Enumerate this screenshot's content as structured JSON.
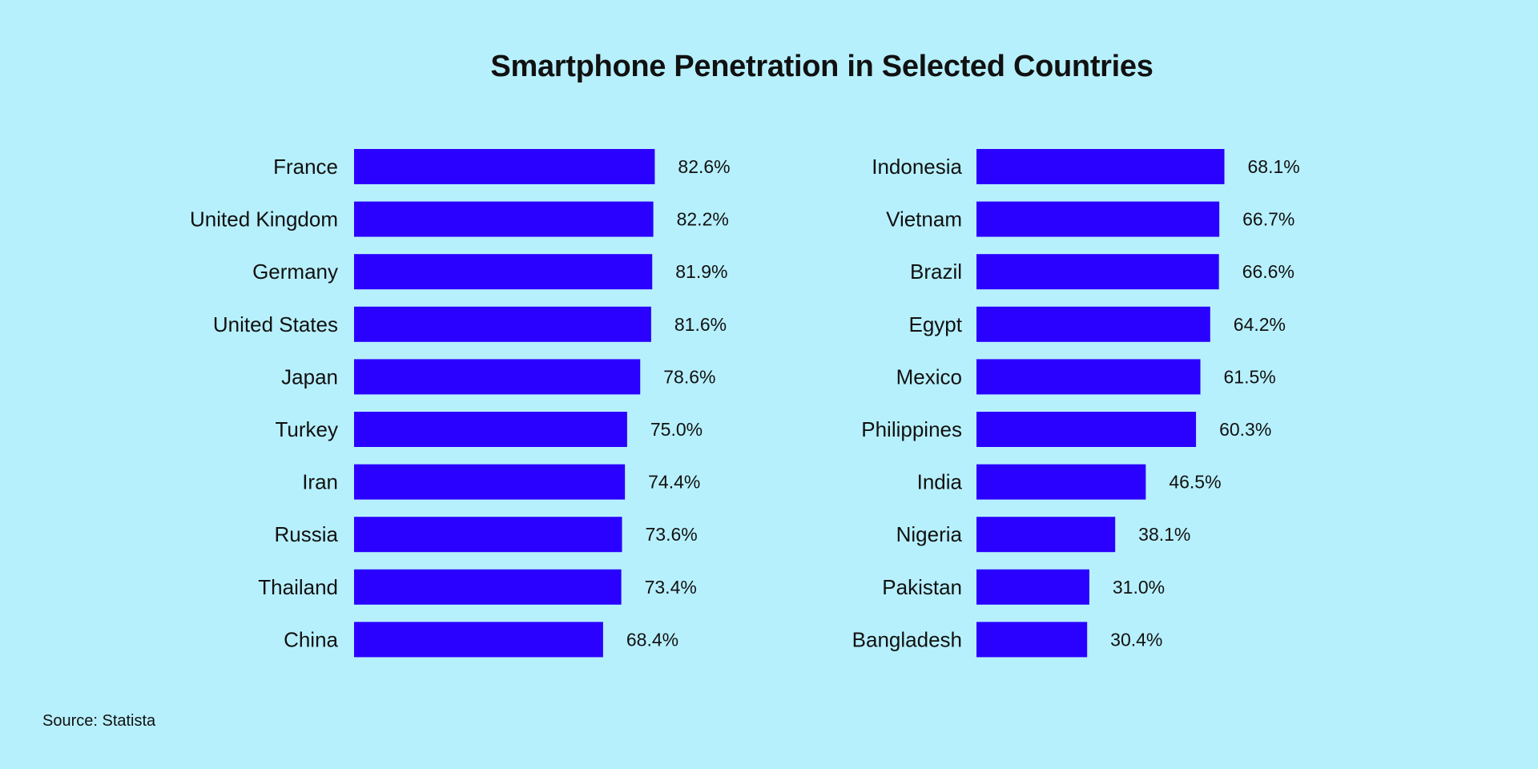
{
  "title": "Smartphone Penetration in Selected Countries",
  "source": "Source: Statista",
  "colors": {
    "background": "#b7f0fd",
    "bar": "#2a00ff",
    "text": "#111111"
  },
  "chart_data": [
    {
      "type": "bar",
      "orientation": "horizontal",
      "title": "",
      "categories": [
        "France",
        "United Kingdom",
        "Germany",
        "United States",
        "Japan",
        "Turkey",
        "Iran",
        "Russia",
        "Thailand",
        "China"
      ],
      "values": [
        82.6,
        82.2,
        81.9,
        81.6,
        78.6,
        75.0,
        74.4,
        73.6,
        73.4,
        68.4
      ],
      "value_labels": [
        "82.6%",
        "82.2%",
        "81.9%",
        "81.6%",
        "78.6%",
        "75.0%",
        "74.4%",
        "73.6%",
        "73.4%",
        "68.4%"
      ],
      "unit": "%",
      "xlim": [
        0,
        100
      ],
      "grid": false,
      "legend": "none"
    },
    {
      "type": "bar",
      "orientation": "horizontal",
      "title": "",
      "categories": [
        "Indonesia",
        "Vietnam",
        "Brazil",
        "Egypt",
        "Mexico",
        "Philippines",
        "India",
        "Nigeria",
        "Pakistan",
        "Bangladesh"
      ],
      "values": [
        68.1,
        66.7,
        66.6,
        64.2,
        61.5,
        60.3,
        46.5,
        38.1,
        31.0,
        30.4
      ],
      "value_labels": [
        "68.1%",
        "66.7%",
        "66.6%",
        "64.2%",
        "61.5%",
        "60.3%",
        "46.5%",
        "38.1%",
        "31.0%",
        "30.4%"
      ],
      "unit": "%",
      "xlim": [
        0,
        100
      ],
      "grid": false,
      "legend": "none"
    }
  ]
}
